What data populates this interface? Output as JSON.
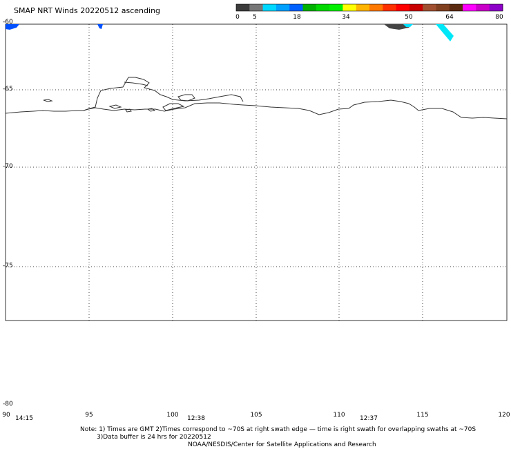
{
  "title": "SMAP NRT Winds 20220512 ascending",
  "colorbar": {
    "ticks": [
      "0",
      "5",
      "18",
      "34",
      "50",
      "64",
      "80"
    ],
    "segments": [
      "#3c3c3c",
      "#777777",
      "#00d8ff",
      "#00a0ff",
      "#0060ff",
      "#00b000",
      "#00d800",
      "#00f000",
      "#ffff00",
      "#ffb400",
      "#ff7800",
      "#ff3000",
      "#ff0000",
      "#c80000",
      "#a05030",
      "#804020",
      "#5a2a10",
      "#ff00ff",
      "#c800c8",
      "#8c00c8"
    ]
  },
  "lat_labels": [
    "-60",
    "-65",
    "-70",
    "-75",
    "-80"
  ],
  "lon_labels": [
    "90",
    "95",
    "100",
    "105",
    "110",
    "115",
    "120"
  ],
  "time_labels": [
    "14:15",
    "12:38",
    "12:37"
  ],
  "notes": {
    "line1": "Note: 1) Times are GMT 2)Times correspond to ~70S at right swath edge — time is right swath for overlapping swaths at ~70S",
    "line2": "3)Data buffer is 24 hrs for 20220512",
    "line3": "NOAA/NESDIS/Center for Satellite Applications and Research"
  }
}
